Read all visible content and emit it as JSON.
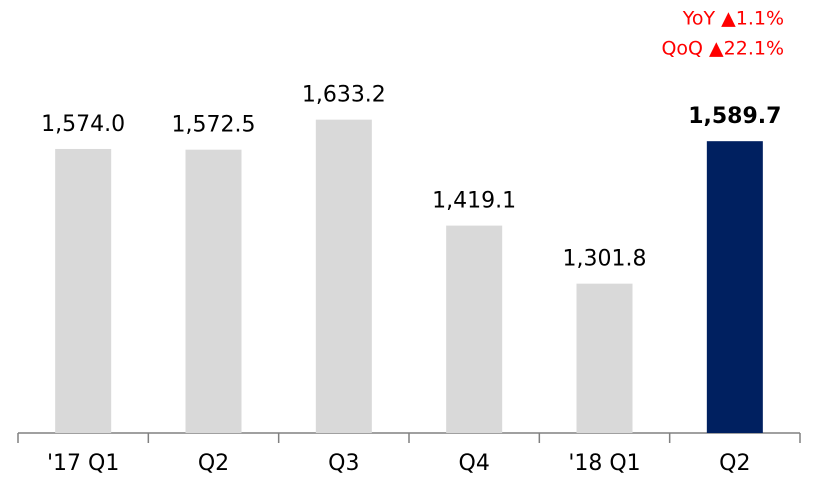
{
  "chart_data": {
    "type": "bar",
    "categories": [
      "'17 Q1",
      "Q2",
      "Q3",
      "Q4",
      "'18 Q1",
      "Q2"
    ],
    "values": [
      1574.0,
      1572.5,
      1633.2,
      1419.1,
      1301.8,
      1589.7
    ],
    "value_labels": [
      "1,574.0",
      "1,572.5",
      "1,633.2",
      "1,419.1",
      "1,301.8",
      "1,589.7"
    ],
    "colors": [
      "#d9d9d9",
      "#d9d9d9",
      "#d9d9d9",
      "#d9d9d9",
      "#d9d9d9",
      "#002060"
    ],
    "annotations": [
      "YoY ▲1.1%",
      "QoQ ▲22.1%"
    ],
    "ylim": [
      1000,
      1875
    ]
  }
}
